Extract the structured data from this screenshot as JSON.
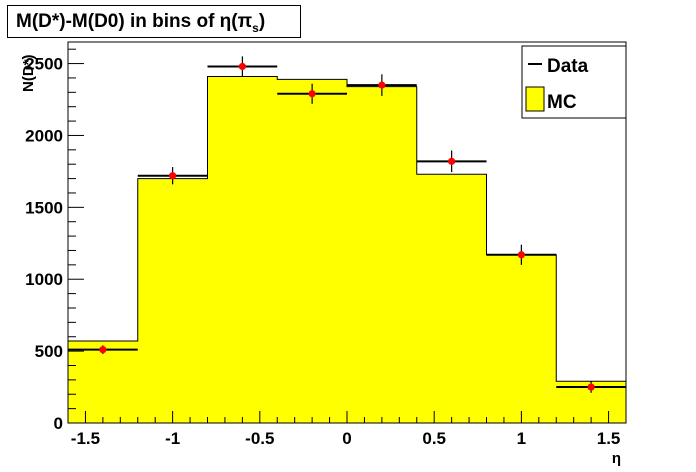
{
  "title": {
    "main": "M(D*)-M(D0) in bins of η(π",
    "sub": "s",
    "close": ")"
  },
  "chart_data": {
    "type": "bar",
    "title": "M(D*)-M(D0) in bins of η(πs)",
    "xlabel": "η",
    "ylabel": "N(D*)",
    "xlim": [
      -1.6,
      1.6
    ],
    "ylim": [
      0,
      2650
    ],
    "x_ticks": [
      "-1.5",
      "-1",
      "-0.5",
      "0",
      "0.5",
      "1",
      "1.5"
    ],
    "y_ticks": [
      "0",
      "500",
      "1000",
      "1500",
      "2000",
      "2500"
    ],
    "bin_edges": [
      -1.6,
      -1.2,
      -0.8,
      -0.4,
      0.0,
      0.4,
      0.8,
      1.2,
      1.6
    ],
    "series": [
      {
        "name": "MC",
        "kind": "histogram",
        "color": "#ffff00",
        "values": [
          570,
          1700,
          2410,
          2390,
          2340,
          1730,
          1170,
          290
        ]
      },
      {
        "name": "Data",
        "kind": "points",
        "color": "#000000",
        "marker_color": "#ff0000",
        "values": [
          510,
          1720,
          2480,
          2290,
          2350,
          1820,
          1170,
          250
        ],
        "errors": [
          30,
          60,
          70,
          70,
          75,
          75,
          70,
          40
        ]
      }
    ],
    "legend": {
      "position": "top-right",
      "entries": [
        "Data",
        "MC"
      ]
    }
  }
}
